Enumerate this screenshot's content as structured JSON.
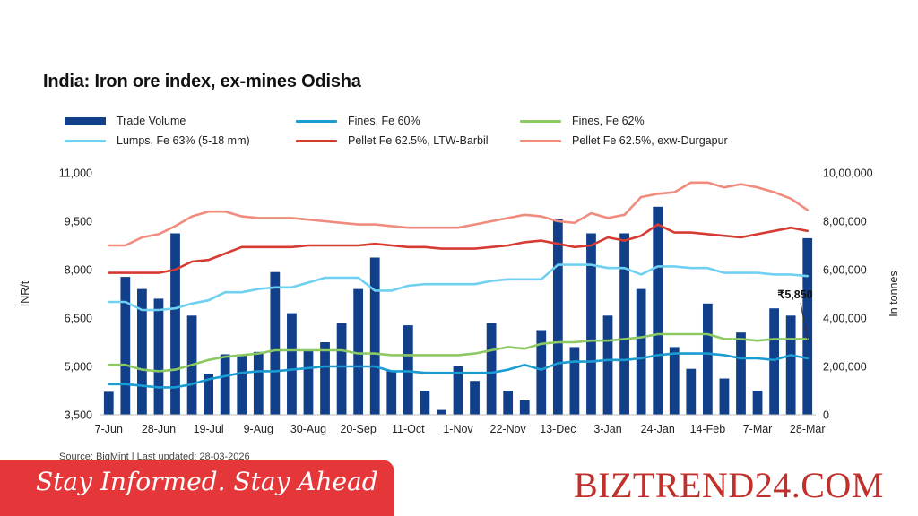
{
  "title": "India: Iron ore index, ex-mines Odisha",
  "source": "Source: BigMint | Last updated: 28-03-2026",
  "footer": {
    "tagline": "Stay Informed. Stay Ahead",
    "brand": "BIZTREND24.COM"
  },
  "legend": [
    {
      "label": "Trade Volume",
      "color": "#123f8a",
      "kind": "bar"
    },
    {
      "label": "Fines, Fe 60%",
      "color": "#1a9bd1",
      "kind": "line"
    },
    {
      "label": "Fines, Fe 62%",
      "color": "#8cc963",
      "kind": "line"
    },
    {
      "label": "Lumps, Fe 63% (5-18 mm)",
      "color": "#6fd0f2",
      "kind": "line"
    },
    {
      "label": "Pellet Fe 62.5%, LTW-Barbil",
      "color": "#d63b32",
      "kind": "line"
    },
    {
      "label": "Pellet Fe  62.5%, exw-Durgapur",
      "color": "#f08b7e",
      "kind": "line"
    }
  ],
  "chart_data": {
    "type": "bar",
    "title": "India: Iron ore index, ex-mines Odisha",
    "ylabel": "INR/t",
    "y2label": "In tonnes",
    "ylim": [
      3500,
      11000
    ],
    "y2lim": [
      0,
      1000000
    ],
    "yticks": [
      "3,500",
      "5,000",
      "6,500",
      "8,000",
      "9,500",
      "11,000"
    ],
    "y2ticks": [
      "0",
      "2,00,000",
      "4,00,000",
      "6,00,000",
      "8,00,000",
      "10,00,000"
    ],
    "x_tick_labels": [
      "7-Jun",
      "28-Jun",
      "19-Jul",
      "9-Aug",
      "30-Aug",
      "20-Sep",
      "11-Oct",
      "1-Nov",
      "22-Nov",
      "13-Dec",
      "3-Jan",
      "24-Jan",
      "14-Feb",
      "7-Mar",
      "28-Mar"
    ],
    "annotation": "₹5,850",
    "grid": false,
    "legend_position": "top",
    "series": [
      {
        "name": "Trade Volume",
        "axis": "right",
        "type": "bar",
        "values": [
          95000,
          570000,
          520000,
          480000,
          750000,
          410000,
          170000,
          250000,
          250000,
          260000,
          590000,
          420000,
          270000,
          300000,
          380000,
          520000,
          650000,
          180000,
          370000,
          100000,
          20000,
          200000,
          140000,
          380000,
          100000,
          60000,
          350000,
          810000,
          280000,
          750000,
          410000,
          750000,
          520000,
          860000,
          280000,
          190000,
          460000,
          150000,
          340000,
          100000,
          440000,
          410000,
          730000
        ]
      },
      {
        "name": "Fines, Fe 60%",
        "axis": "left",
        "type": "line",
        "values": [
          4450,
          4450,
          4400,
          4350,
          4350,
          4450,
          4600,
          4700,
          4800,
          4850,
          4850,
          4900,
          4950,
          5000,
          5000,
          5000,
          5000,
          4850,
          4850,
          4800,
          4800,
          4800,
          4800,
          4800,
          4900,
          5050,
          4900,
          5100,
          5150,
          5150,
          5200,
          5200,
          5250,
          5350,
          5400,
          5400,
          5400,
          5350,
          5250,
          5250,
          5200,
          5350,
          5250
        ]
      },
      {
        "name": "Fines, Fe 62%",
        "axis": "left",
        "type": "line",
        "values": [
          5050,
          5050,
          4900,
          4850,
          4900,
          5050,
          5200,
          5300,
          5350,
          5400,
          5500,
          5500,
          5500,
          5500,
          5500,
          5400,
          5400,
          5350,
          5350,
          5350,
          5350,
          5350,
          5400,
          5500,
          5600,
          5550,
          5700,
          5750,
          5750,
          5800,
          5800,
          5850,
          5900,
          6000,
          6000,
          6000,
          6000,
          5850,
          5850,
          5800,
          5850,
          5850,
          5850
        ]
      },
      {
        "name": "Lumps, Fe 63% (5-18 mm)",
        "axis": "left",
        "type": "line",
        "values": [
          7000,
          7000,
          6750,
          6750,
          6800,
          6950,
          7050,
          7300,
          7300,
          7400,
          7450,
          7450,
          7600,
          7750,
          7750,
          7750,
          7350,
          7350,
          7500,
          7550,
          7550,
          7550,
          7550,
          7650,
          7700,
          7700,
          7700,
          8150,
          8150,
          8150,
          8050,
          8050,
          7850,
          8100,
          8100,
          8050,
          8050,
          7900,
          7900,
          7900,
          7850,
          7850,
          7800
        ]
      },
      {
        "name": "Pellet Fe 62.5%, LTW-Barbil",
        "axis": "left",
        "type": "line",
        "values": [
          7900,
          7900,
          7900,
          7900,
          8000,
          8250,
          8300,
          8500,
          8700,
          8700,
          8700,
          8700,
          8750,
          8750,
          8750,
          8750,
          8800,
          8750,
          8700,
          8700,
          8650,
          8650,
          8650,
          8700,
          8750,
          8850,
          8900,
          8800,
          8700,
          8750,
          9000,
          8900,
          9050,
          9400,
          9150,
          9150,
          9100,
          9050,
          9000,
          9100,
          9200,
          9300,
          9200
        ]
      },
      {
        "name": "Pellet Fe  62.5%, exw-Durgapur",
        "axis": "left",
        "type": "line",
        "values": [
          8750,
          8750,
          9000,
          9100,
          9350,
          9650,
          9800,
          9800,
          9650,
          9600,
          9600,
          9600,
          9550,
          9500,
          9450,
          9400,
          9400,
          9350,
          9300,
          9300,
          9300,
          9300,
          9400,
          9500,
          9600,
          9700,
          9650,
          9500,
          9450,
          9750,
          9600,
          9700,
          10250,
          10350,
          10400,
          10700,
          10700,
          10550,
          10650,
          10550,
          10400,
          10200,
          9850
        ]
      }
    ]
  }
}
